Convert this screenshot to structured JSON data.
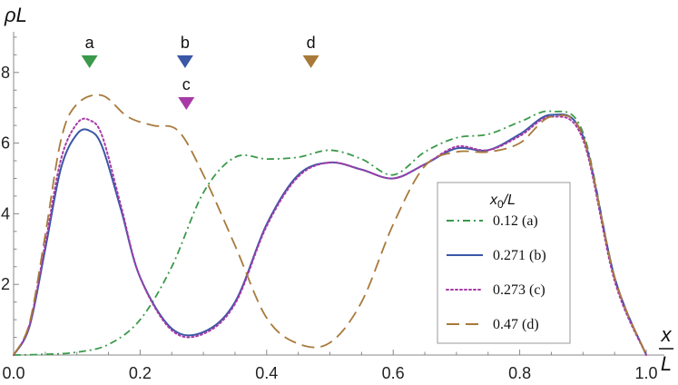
{
  "chart_data": {
    "type": "line",
    "ylabel": "ρL",
    "xlabel_top": "x",
    "xlabel_bottom": "L",
    "xlim": [
      0,
      1
    ],
    "ylim": [
      0,
      9
    ],
    "x_ticks": [
      "0.0",
      "0.2",
      "0.4",
      "0.6",
      "0.8",
      "1.0"
    ],
    "y_ticks": [
      "2",
      "4",
      "6",
      "8"
    ],
    "grid": false,
    "legend": {
      "title_main": "x",
      "title_sub": "0",
      "title_rest": "/L",
      "placement": "right"
    },
    "series": [
      {
        "name": "0.12 (a)",
        "color": "#3a9a4a",
        "dash": "dash-dot",
        "x": [
          0,
          0.05,
          0.1,
          0.15,
          0.2,
          0.25,
          0.3,
          0.35,
          0.4,
          0.45,
          0.5,
          0.55,
          0.6,
          0.65,
          0.7,
          0.75,
          0.8,
          0.85,
          0.9,
          0.95,
          1.0
        ],
        "y": [
          0,
          0.02,
          0.08,
          0.3,
          1.0,
          2.5,
          4.6,
          5.6,
          5.55,
          5.6,
          5.8,
          5.55,
          5.1,
          5.75,
          6.15,
          6.25,
          6.6,
          6.9,
          6.3,
          2.2,
          0
        ]
      },
      {
        "name": "0.271 (b)",
        "color": "#3b57a6",
        "dash": "solid",
        "x": [
          0,
          0.025,
          0.05,
          0.075,
          0.1,
          0.12,
          0.14,
          0.17,
          0.2,
          0.25,
          0.3,
          0.35,
          0.4,
          0.45,
          0.5,
          0.55,
          0.6,
          0.65,
          0.7,
          0.75,
          0.8,
          0.85,
          0.9,
          0.95,
          1.0
        ],
        "y": [
          0,
          0.8,
          3.0,
          5.3,
          6.25,
          6.35,
          5.9,
          4.1,
          2.2,
          0.75,
          0.65,
          1.5,
          3.7,
          5.1,
          5.45,
          5.25,
          5.0,
          5.4,
          5.85,
          5.8,
          6.25,
          6.8,
          6.2,
          2.2,
          0
        ]
      },
      {
        "name": "0.273 (c)",
        "color": "#a83aa6",
        "dash": "dotted",
        "x": [
          0,
          0.025,
          0.05,
          0.075,
          0.1,
          0.12,
          0.14,
          0.17,
          0.2,
          0.25,
          0.3,
          0.35,
          0.4,
          0.45,
          0.5,
          0.55,
          0.6,
          0.65,
          0.7,
          0.75,
          0.8,
          0.85,
          0.9,
          0.95,
          1.0
        ],
        "y": [
          0,
          0.85,
          3.15,
          5.55,
          6.55,
          6.65,
          6.2,
          4.2,
          2.2,
          0.7,
          0.6,
          1.45,
          3.65,
          5.05,
          5.45,
          5.25,
          5.0,
          5.4,
          5.9,
          5.8,
          6.2,
          6.75,
          6.1,
          2.1,
          0
        ]
      },
      {
        "name": "0.47 (d)",
        "color": "#a87a3a",
        "dash": "dashed",
        "x": [
          0,
          0.025,
          0.05,
          0.075,
          0.1,
          0.14,
          0.18,
          0.22,
          0.26,
          0.3,
          0.35,
          0.4,
          0.45,
          0.5,
          0.55,
          0.6,
          0.65,
          0.7,
          0.75,
          0.8,
          0.85,
          0.9,
          0.95,
          1.0
        ],
        "y": [
          0,
          0.9,
          3.4,
          6.1,
          7.1,
          7.35,
          6.75,
          6.5,
          6.35,
          5.1,
          3.1,
          1.05,
          0.32,
          0.35,
          1.5,
          3.7,
          5.35,
          5.75,
          5.75,
          6.0,
          6.75,
          6.2,
          2.2,
          0
        ]
      }
    ],
    "markers": [
      {
        "label": "a",
        "x": 0.12,
        "color": "#3a9a4a",
        "row": 1
      },
      {
        "label": "b",
        "x": 0.271,
        "color": "#3b57a6",
        "row": 1
      },
      {
        "label": "c",
        "x": 0.273,
        "color": "#a83aa6",
        "row": 2
      },
      {
        "label": "d",
        "x": 0.47,
        "color": "#a87a3a",
        "row": 1
      }
    ]
  }
}
